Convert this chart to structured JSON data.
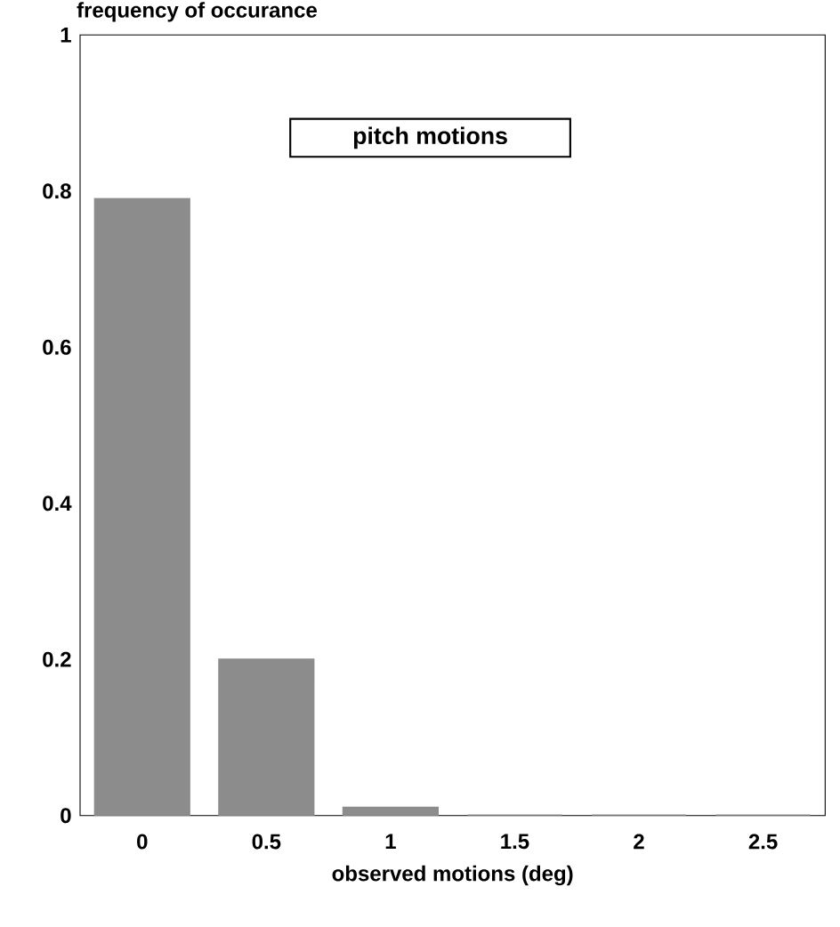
{
  "chart_data": {
    "type": "bar",
    "title": "pitch motions",
    "xlabel": "observed motions (deg)",
    "ylabel": "frequency of occurance",
    "categories": [
      "0",
      "0.5",
      "1",
      "1.5",
      "2",
      "2.5"
    ],
    "values": [
      0.79,
      0.2,
      0.01,
      0,
      0,
      0
    ],
    "color": "#8c8c8c",
    "ylim": [
      0,
      1
    ],
    "yticks": [
      0,
      0.2,
      0.4,
      0.6,
      0.8,
      1
    ],
    "grid": false
  }
}
